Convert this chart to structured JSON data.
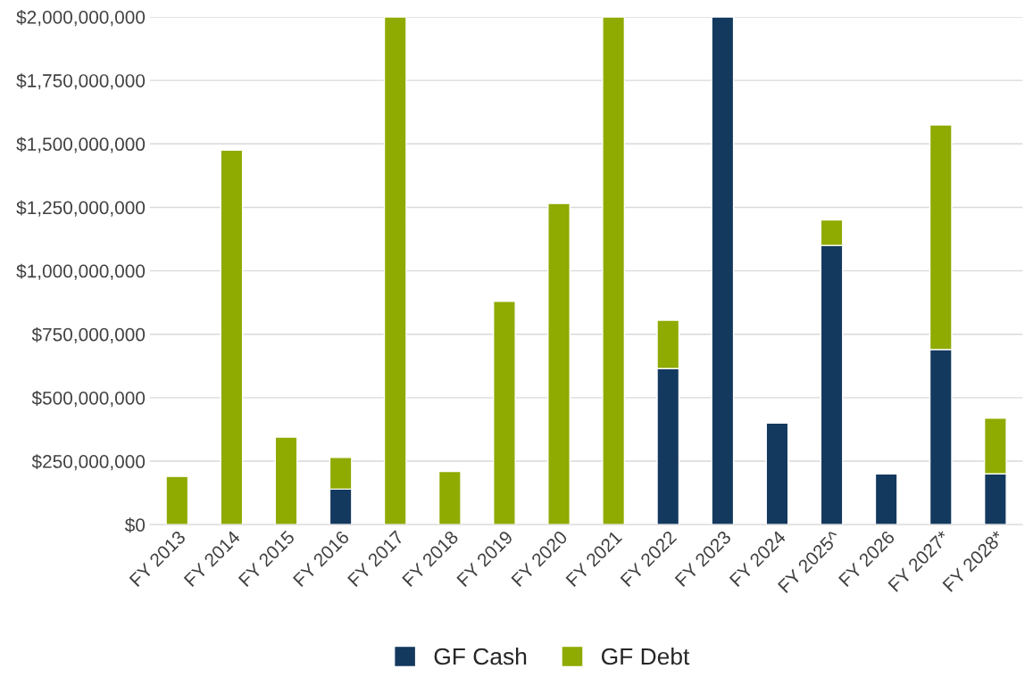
{
  "chart_data": {
    "type": "bar",
    "stacked": true,
    "categories": [
      "FY 2013",
      "FY 2014",
      "FY 2015",
      "FY 2016",
      "FY 2017",
      "FY 2018",
      "FY 2019",
      "FY 2020",
      "FY 2021",
      "FY 2022",
      "FY 2023",
      "FY 2024",
      "FY 2025^",
      "FY 2026",
      "FY 2027*",
      "FY 2028*"
    ],
    "series": [
      {
        "name": "GF Cash",
        "color": "#14395e",
        "values": [
          null,
          null,
          null,
          140000000,
          null,
          null,
          null,
          null,
          null,
          615000000,
          2000000000,
          400000000,
          1100000000,
          200000000,
          690000000,
          200000000
        ]
      },
      {
        "name": "GF Debt",
        "color": "#8faa00",
        "values": [
          190000000,
          1475000000,
          345000000,
          125000000,
          2000000000,
          210000000,
          880000000,
          1265000000,
          2000000000,
          190000000,
          null,
          null,
          100000000,
          null,
          885000000,
          220000000
        ]
      }
    ],
    "ylim": [
      0,
      2000000000
    ],
    "yticks": [
      {
        "value": 0,
        "label": "$0"
      },
      {
        "value": 250000000,
        "label": "$250,000,000"
      },
      {
        "value": 500000000,
        "label": "$500,000,000"
      },
      {
        "value": 750000000,
        "label": "$750,000,000"
      },
      {
        "value": 1000000000,
        "label": "$1,000,000,000"
      },
      {
        "value": 1250000000,
        "label": "$1,250,000,000"
      },
      {
        "value": 1500000000,
        "label": "$1,500,000,000"
      },
      {
        "value": 1750000000,
        "label": "$1,750,000,000"
      },
      {
        "value": 2000000000,
        "label": "$2,000,000,000"
      }
    ],
    "grid": "y",
    "legend": "bottom"
  }
}
